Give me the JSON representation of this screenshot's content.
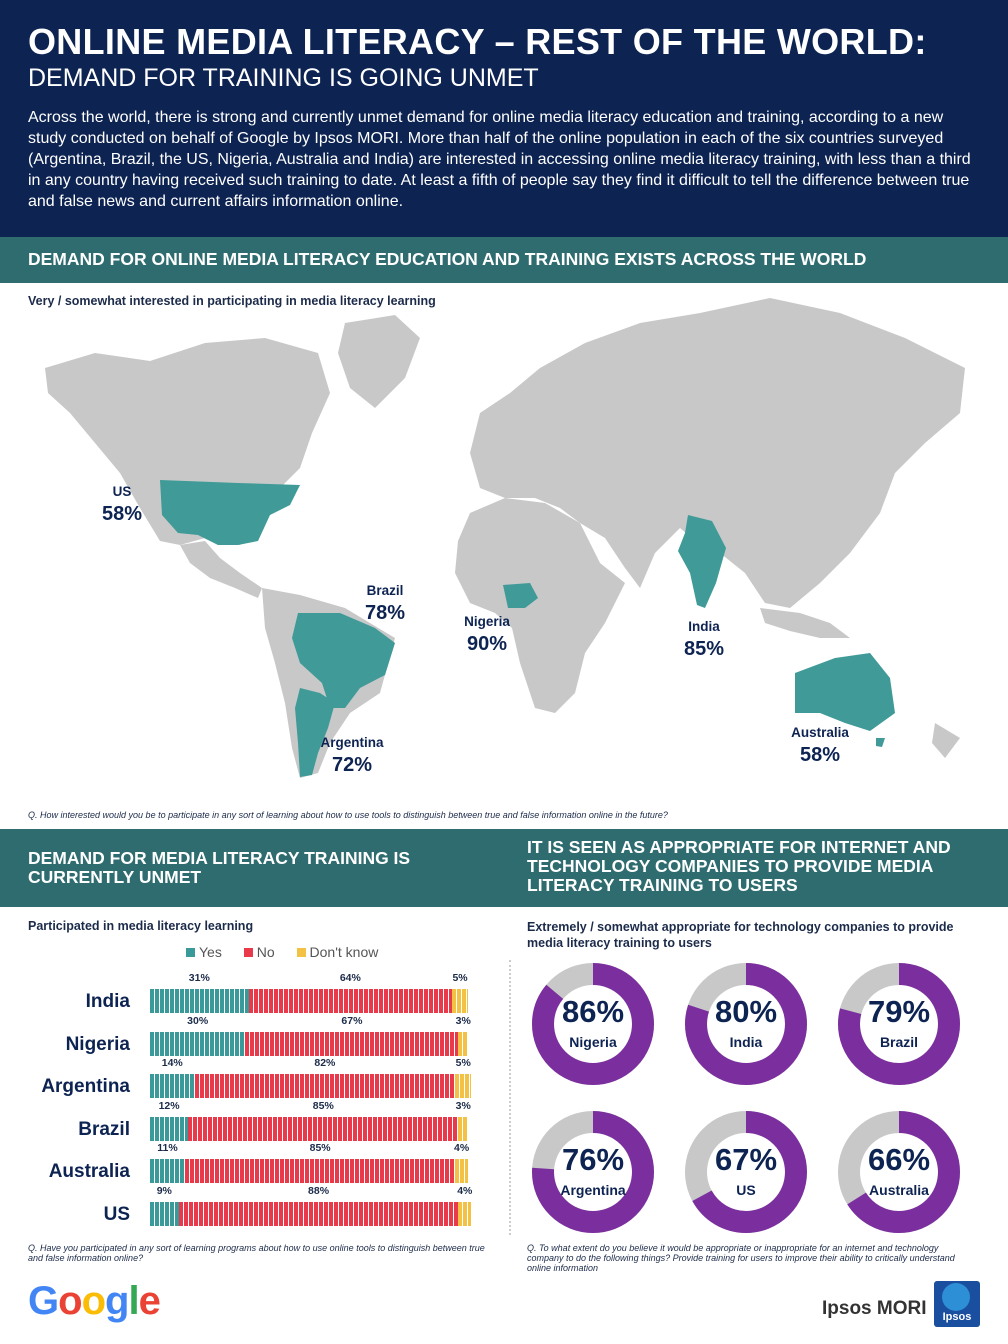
{
  "header": {
    "title": "ONLINE MEDIA LITERACY – REST OF THE WORLD:",
    "subtitle": "DEMAND FOR TRAINING IS GOING UNMET",
    "intro": "Across the world, there is strong and currently unmet demand for online media literacy education and training, according to a new study conducted on behalf of Google by Ipsos MORI. More than half of the online population in each of the six countries surveyed (Argentina, Brazil, the US, Nigeria, Australia and India) are interested in accessing online media literacy training, with less than a third in any country having received such training to date. At least a fifth of people say they find it difficult to tell the difference between true and false news and current affairs information online."
  },
  "section1": {
    "heading": "DEMAND FOR ONLINE MEDIA LITERACY EDUCATION AND TRAINING EXISTS ACROSS THE WORLD",
    "chart_label": "Very / somewhat interested in participating in media literacy learning",
    "note": "Q.   How interested would you  be to participate in any sort of learning about how to use tools to distinguish between true and false information online in the future?"
  },
  "section2": {
    "heading": "DEMAND FOR MEDIA LITERACY TRAINING IS CURRENTLY UNMET",
    "chart_label": "Participated in media literacy learning",
    "note": "Q.   Have you participated in any sort of learning programs about how to use online tools to distinguish between true and false information online?"
  },
  "section3": {
    "heading": "IT IS SEEN AS APPROPRIATE FOR INTERNET AND TECHNOLOGY COMPANIES TO PROVIDE MEDIA LITERACY TRAINING TO USERS",
    "chart_label": "Extremely / somewhat appropriate for technology companies to provide media literacy training to users",
    "note": "Q.   To what extent do you  believe it would be appropriate or inappropriate for an internet and technology company to do the following things? Provide training for users to improve their ability to critically understand online information"
  },
  "logos": {
    "google": "Google",
    "ipsos": "Ipsos MORI",
    "ipsos_box": "Ipsos"
  },
  "colors": {
    "navy": "#0d2352",
    "teal_band": "#2e6c70",
    "map_land": "#c8c8c8",
    "map_highlight": "#3f9a98",
    "yes": "#3a9a9a",
    "no": "#e83a4a",
    "dont_know": "#f3c244",
    "donut": "#7b2f9e",
    "donut_rest": "#c8c8c8"
  },
  "chart_data": [
    {
      "type": "map",
      "title": "Very / somewhat interested in participating in media literacy learning",
      "categories": [
        "US",
        "Brazil",
        "Nigeria",
        "India",
        "Argentina",
        "Australia"
      ],
      "values": [
        58,
        78,
        90,
        85,
        72,
        58
      ],
      "value_labels": [
        "58%",
        "78%",
        "90%",
        "85%",
        "72%",
        "58%"
      ]
    },
    {
      "type": "bar",
      "orientation": "horizontal-stacked",
      "title": "Participated in media literacy learning",
      "categories": [
        "India",
        "Nigeria",
        "Argentina",
        "Brazil",
        "Australia",
        "US"
      ],
      "series": [
        {
          "name": "Yes",
          "values": [
            31,
            30,
            14,
            12,
            11,
            9
          ],
          "labels": [
            "31%",
            "30%",
            "14%",
            "12%",
            "11%",
            "9%"
          ]
        },
        {
          "name": "No",
          "values": [
            64,
            67,
            82,
            85,
            85,
            88
          ],
          "labels": [
            "64%",
            "67%",
            "82%",
            "85%",
            "85%",
            "88%"
          ]
        },
        {
          "name": "Don't know",
          "values": [
            5,
            3,
            5,
            3,
            4,
            4
          ],
          "labels": [
            "5%",
            "3%",
            "5%",
            "3%",
            "4%",
            "4%"
          ]
        }
      ],
      "legend": "top"
    },
    {
      "type": "pie",
      "style": "donut",
      "title": "Extremely / somewhat appropriate for technology companies to provide media literacy training to users",
      "categories": [
        "Nigeria",
        "India",
        "Brazil",
        "Argentina",
        "US",
        "Australia"
      ],
      "values": [
        86,
        80,
        79,
        76,
        67,
        66
      ],
      "value_labels": [
        "86%",
        "80%",
        "79%",
        "76%",
        "67%",
        "66%"
      ]
    }
  ]
}
